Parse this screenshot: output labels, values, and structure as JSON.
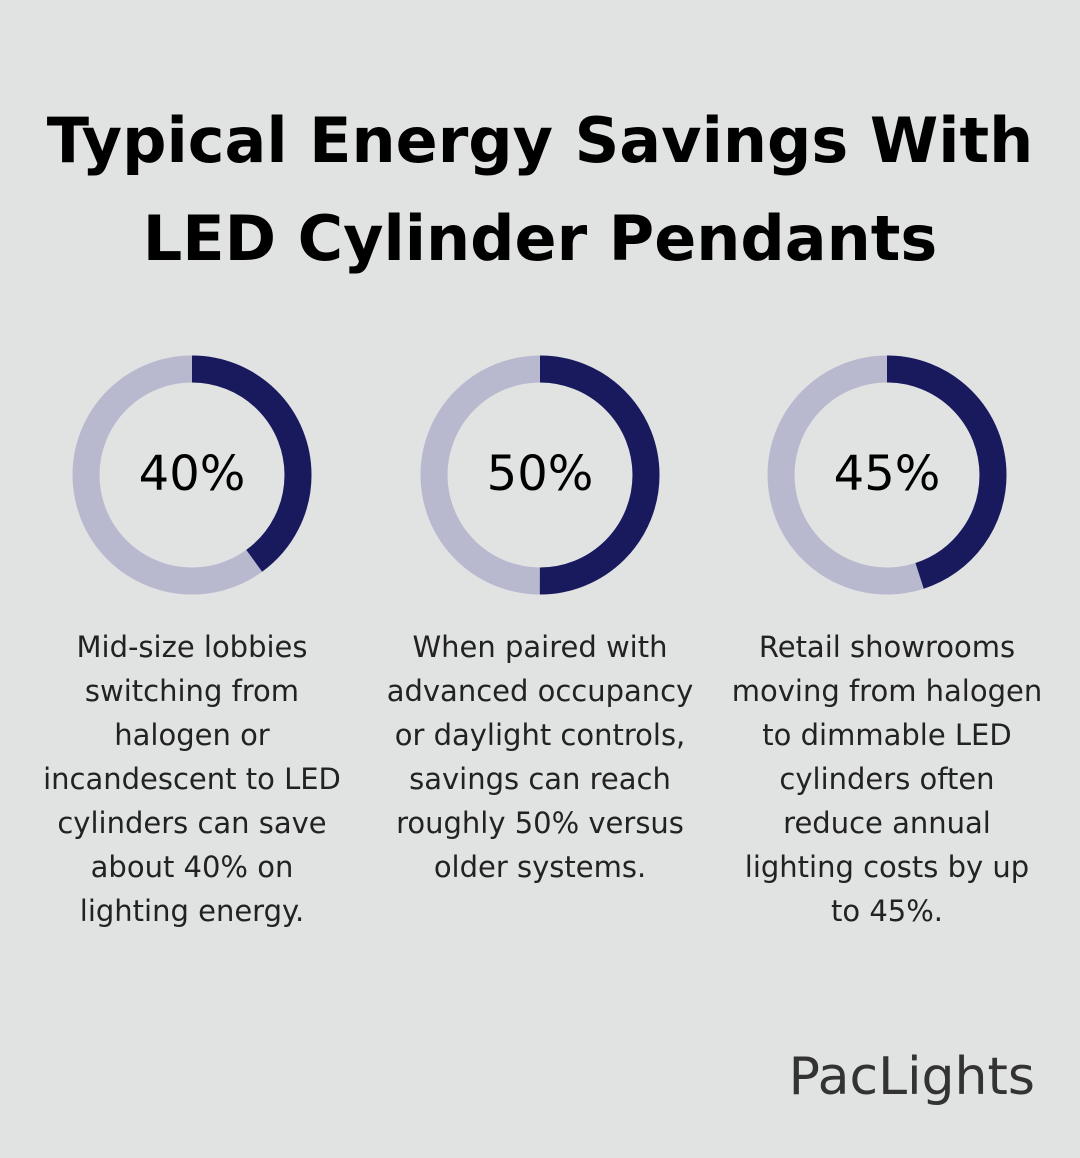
{
  "title_lines": [
    "Typical Energy Savings With",
    "LED Cylinder Pendants"
  ],
  "chart_data": [
    {
      "type": "donut",
      "values": [
        40
      ],
      "value_labels": [
        "40%"
      ],
      "color": "#191a5e",
      "track_color": "#b8b9cf",
      "description_lines": [
        "Mid-size lobbies",
        "switching from",
        "halogen or",
        "incandescent to LED",
        "cylinders can save",
        "about 40% on",
        "lighting energy."
      ]
    },
    {
      "type": "donut",
      "values": [
        50
      ],
      "value_labels": [
        "50%"
      ],
      "color": "#191a5e",
      "track_color": "#b8b9cf",
      "description_lines": [
        "When paired with",
        "advanced occupancy",
        "or daylight controls,",
        "savings can reach",
        "roughly 50% versus",
        "older systems."
      ]
    },
    {
      "type": "donut",
      "values": [
        45
      ],
      "value_labels": [
        "45%"
      ],
      "color": "#191a5e",
      "track_color": "#b8b9cf",
      "description_lines": [
        "Retail showrooms",
        "moving from halogen",
        "to dimmable LED",
        "cylinders often",
        "reduce annual",
        "lighting costs by up",
        "to 45%."
      ]
    }
  ],
  "brand": "PacLights"
}
